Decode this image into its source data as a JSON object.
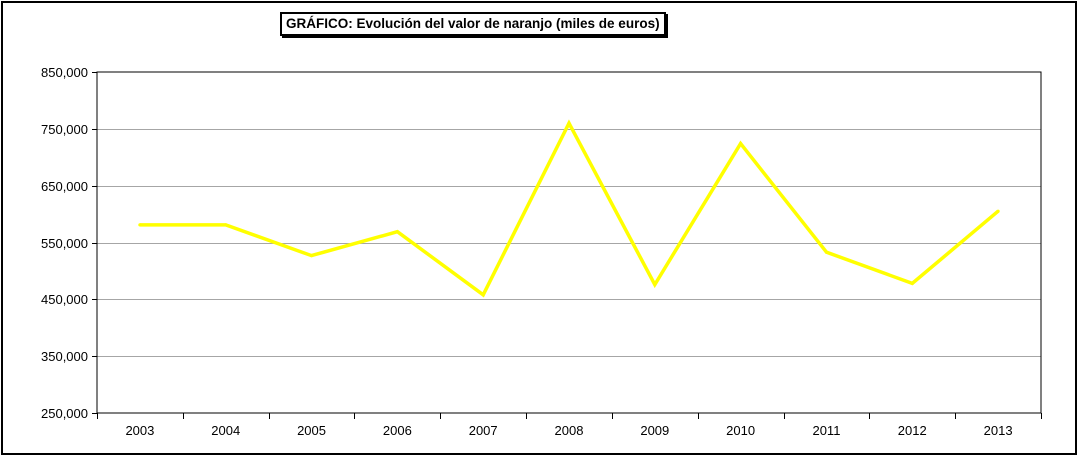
{
  "chart_data": {
    "type": "line",
    "title": "GRÁFICO: Evolución del valor de naranjo (miles de euros)",
    "xlabel": "",
    "ylabel": "",
    "categories": [
      "2003",
      "2004",
      "2005",
      "2006",
      "2007",
      "2008",
      "2009",
      "2010",
      "2011",
      "2012",
      "2013"
    ],
    "series": [
      {
        "values": [
          581000,
          581000,
          527000,
          569000,
          458000,
          760000,
          476000,
          724000,
          533000,
          478000,
          605000
        ],
        "color": "#ffff00"
      }
    ],
    "ylim": [
      250000,
      850000
    ],
    "yticks": [
      "250,000",
      "350,000",
      "450,000",
      "550,000",
      "650,000",
      "750,000",
      "850,000"
    ],
    "ytick_values": [
      250000,
      350000,
      450000,
      550000,
      650000,
      750000,
      850000
    ],
    "grid": true,
    "legend": "none",
    "colors": {
      "line": "#ffff00",
      "grid": "#a6a6a6",
      "axis": "#000000",
      "frame": "#000000"
    }
  }
}
